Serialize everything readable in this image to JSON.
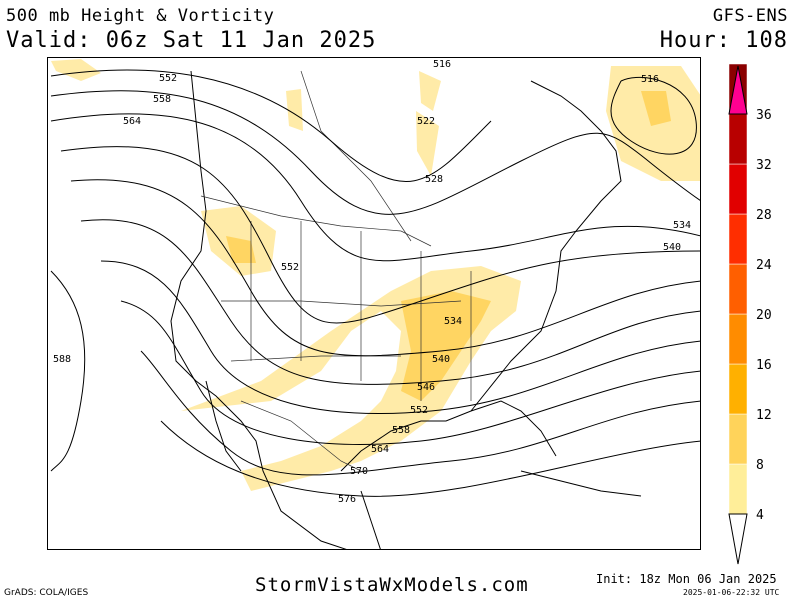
{
  "header": {
    "title": "500 mb Height & Vorticity",
    "valid": "Valid: 06z Sat 11 Jan 2025",
    "model": "GFS-ENS",
    "hour": "Hour: 108"
  },
  "legend": {
    "ticks": [
      "36",
      "32",
      "28",
      "24",
      "20",
      "16",
      "12",
      "8",
      "4"
    ],
    "colors": [
      "#ffee99",
      "#ffd35a",
      "#ffb000",
      "#ff8c00",
      "#ff5f00",
      "#ff2e00",
      "#e10000",
      "#b80000",
      "#8a0000",
      "#ff0090"
    ]
  },
  "contour_labels": [
    "552",
    "558",
    "564",
    "516",
    "522",
    "528",
    "516",
    "534",
    "540",
    "552",
    "534",
    "540",
    "546",
    "552",
    "558",
    "564",
    "570",
    "576",
    "588"
  ],
  "footer": {
    "grads": "GrADS: COLA/IGES",
    "site": "StormVistaWxModels.com",
    "init": "Init: 18z Mon 06 Jan 2025",
    "stamp": "2025-01-06-22:32 UTC"
  }
}
